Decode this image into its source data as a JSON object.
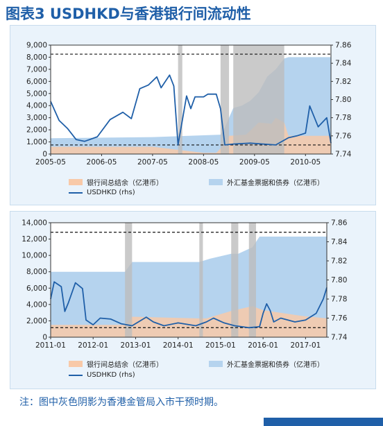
{
  "title": "图表3  USDHKD与香港银行间流动性",
  "note": "注：图中灰色阴影为香港金管局入市干预时期。",
  "colors": {
    "balance": "#f8c9a8",
    "efbn": "#b5d3ee",
    "usdhkd": "#1f5fa8",
    "shade": "#bdbdbd",
    "title": "#1f5fa8"
  },
  "chart_data": [
    {
      "type": "area",
      "x_start": "2005-05",
      "x_end": "2010-11",
      "xticks": [
        "2005-05",
        "2006-05",
        "2007-05",
        "2008-05",
        "2009-05",
        "2010-05"
      ],
      "yticks_left": [
        "0",
        "1,000",
        "2,000",
        "3,000",
        "4,000",
        "5,000",
        "6,000",
        "7,000",
        "8,000",
        "9,000"
      ],
      "yticks_right": [
        "7.74",
        "7.76",
        "7.78",
        "7.80",
        "7.82",
        "7.84",
        "7.86"
      ],
      "ylim_left": [
        0,
        9000
      ],
      "ylim_right": [
        7.74,
        7.86
      ],
      "ref_lines_right": [
        7.85,
        7.75
      ],
      "intervention_periods": [
        [
          "2007-11",
          "2007-12"
        ],
        [
          "2008-09",
          "2008-11"
        ],
        [
          "2008-12",
          "2009-12"
        ]
      ],
      "series": [
        {
          "name": "银行间总结余（亿港币）",
          "kind": "area",
          "axis": "left",
          "x": [
            "2005-05",
            "2006-05",
            "2007-05",
            "2008-05",
            "2008-08",
            "2008-10",
            "2008-11",
            "2009-01",
            "2009-03",
            "2009-06",
            "2009-09",
            "2009-10",
            "2009-12",
            "2010-01",
            "2010-06",
            "2010-11"
          ],
          "values": [
            600,
            600,
            600,
            100,
            100,
            800,
            1500,
            1550,
            1600,
            2600,
            2500,
            3000,
            2600,
            1500,
            1500,
            1500
          ]
        },
        {
          "name": "外汇基金票据和债券（亿港币）",
          "kind": "area",
          "axis": "left",
          "x": [
            "2005-05",
            "2007-05",
            "2008-05",
            "2008-09",
            "2008-10",
            "2008-12",
            "2009-02",
            "2009-04",
            "2009-06",
            "2009-08",
            "2009-10",
            "2009-12",
            "2010-01",
            "2010-11"
          ],
          "values": [
            1300,
            1400,
            1550,
            1600,
            2200,
            3800,
            4000,
            4400,
            5100,
            6400,
            7000,
            7900,
            8000,
            8000
          ]
        },
        {
          "name": "USDHKD (rhs)",
          "kind": "line",
          "axis": "right",
          "x": [
            "2005-05",
            "2005-07",
            "2005-09",
            "2005-11",
            "2006-01",
            "2006-04",
            "2006-07",
            "2006-10",
            "2006-12",
            "2007-02",
            "2007-04",
            "2007-06",
            "2007-07",
            "2007-09",
            "2007-10",
            "2007-11",
            "2008-01",
            "2008-02",
            "2008-03",
            "2008-05",
            "2008-06",
            "2008-08",
            "2008-09",
            "2008-10",
            "2008-12",
            "2009-04",
            "2009-07",
            "2009-10",
            "2010-01",
            "2010-03",
            "2010-05",
            "2010-06",
            "2010-08",
            "2010-10",
            "2010-11"
          ],
          "values": [
            7.798,
            7.777,
            7.768,
            7.756,
            7.754,
            7.759,
            7.778,
            7.786,
            7.779,
            7.812,
            7.816,
            7.825,
            7.813,
            7.827,
            7.815,
            7.75,
            7.804,
            7.79,
            7.803,
            7.803,
            7.806,
            7.806,
            7.79,
            7.75,
            7.751,
            7.752,
            7.751,
            7.75,
            7.758,
            7.76,
            7.763,
            7.793,
            7.77,
            7.78,
            7.752
          ]
        }
      ]
    },
    {
      "type": "area",
      "x_start": "2011-01",
      "x_end": "2017-07",
      "xticks": [
        "2011-01",
        "2012-01",
        "2013-01",
        "2014-01",
        "2015-01",
        "2016-01",
        "2017-01"
      ],
      "yticks_left": [
        "0",
        "2,000",
        "4,000",
        "6,000",
        "8,000",
        "10,000",
        "12,000",
        "14,000"
      ],
      "yticks_right": [
        "7.74",
        "7.76",
        "7.78",
        "7.80",
        "7.82",
        "7.84",
        "7.86"
      ],
      "ylim_left": [
        0,
        14000
      ],
      "ylim_right": [
        7.74,
        7.86
      ],
      "ref_lines_right": [
        7.85,
        7.75
      ],
      "intervention_periods": [
        [
          "2012-10",
          "2012-12"
        ],
        [
          "2014-07",
          "2014-08"
        ],
        [
          "2015-04",
          "2015-06"
        ],
        [
          "2015-09",
          "2015-11"
        ]
      ],
      "series": [
        {
          "name": "银行间总结余（亿港币）",
          "kind": "area",
          "axis": "left",
          "x": [
            "2011-01",
            "2012-10",
            "2012-12",
            "2014-07",
            "2014-09",
            "2015-04",
            "2015-10",
            "2016-01",
            "2016-12",
            "2017-07"
          ],
          "values": [
            1500,
            1500,
            2500,
            2300,
            2300,
            3200,
            3800,
            3300,
            2600,
            2300
          ]
        },
        {
          "name": "外汇基金票据和债券（亿港币）",
          "kind": "area",
          "axis": "left",
          "x": [
            "2011-01",
            "2012-10",
            "2012-12",
            "2014-07",
            "2014-10",
            "2015-04",
            "2015-06",
            "2015-10",
            "2015-12",
            "2017-07"
          ],
          "values": [
            8000,
            8000,
            9200,
            9200,
            9600,
            10200,
            10200,
            11000,
            12300,
            12300
          ]
        },
        {
          "name": "USDHKD (rhs)",
          "kind": "line",
          "axis": "right",
          "x": [
            "2011-01",
            "2011-02",
            "2011-04",
            "2011-05",
            "2011-06",
            "2011-08",
            "2011-10",
            "2011-11",
            "2012-01",
            "2012-03",
            "2012-06",
            "2012-09",
            "2012-12",
            "2013-04",
            "2013-06",
            "2013-09",
            "2014-01",
            "2014-06",
            "2014-09",
            "2014-11",
            "2015-02",
            "2015-05",
            "2015-09",
            "2015-12",
            "2016-01",
            "2016-02",
            "2016-03",
            "2016-04",
            "2016-06",
            "2016-08",
            "2016-10",
            "2017-01",
            "2017-04",
            "2017-06",
            "2017-07"
          ],
          "values": [
            7.78,
            7.798,
            7.793,
            7.767,
            7.776,
            7.797,
            7.791,
            7.758,
            7.753,
            7.76,
            7.759,
            7.754,
            7.752,
            7.761,
            7.756,
            7.752,
            7.755,
            7.752,
            7.756,
            7.76,
            7.755,
            7.752,
            7.75,
            7.751,
            7.765,
            7.775,
            7.768,
            7.756,
            7.76,
            7.758,
            7.756,
            7.758,
            7.765,
            7.78,
            7.792
          ]
        }
      ]
    }
  ]
}
